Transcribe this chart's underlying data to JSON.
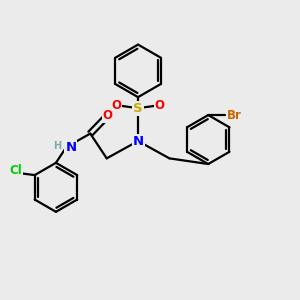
{
  "bg_color": "#ebebeb",
  "bond_color": "#000000",
  "bond_width": 1.6,
  "atom_colors": {
    "N": "#0000ff",
    "O": "#ff0000",
    "S": "#ccaa00",
    "Cl": "#00cc00",
    "Br": "#cc6600",
    "H": "#7faaaa",
    "C": "#000000"
  },
  "font_size": 8.5
}
